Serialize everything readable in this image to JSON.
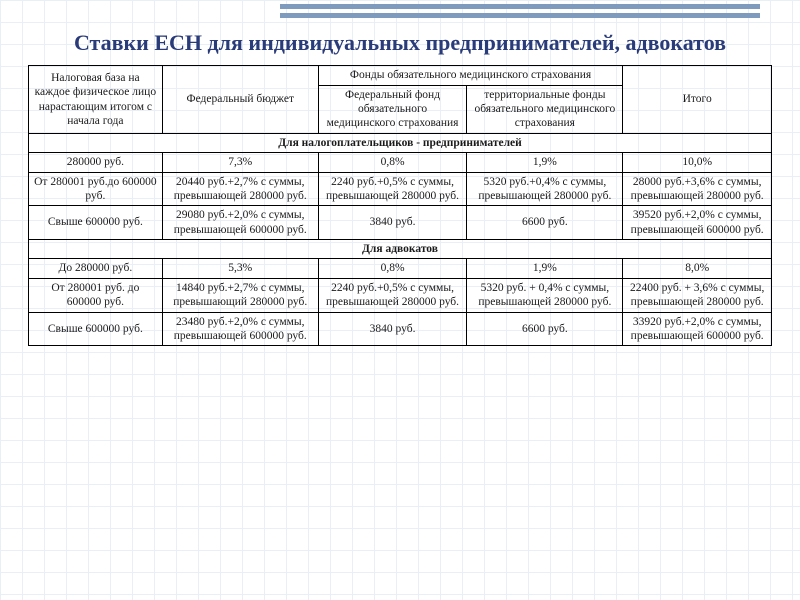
{
  "colors": {
    "title": "#2a3b7a",
    "grid_line": "#d6e4f0",
    "top_stripe": "#7e9bbd",
    "border": "#000000",
    "text": "#1a1a1a"
  },
  "typography": {
    "family": "Times New Roman",
    "title_fontsize": 22,
    "body_fontsize": 11.5
  },
  "title": "Ставки ЕСН для индивидуальных предпринимателей, адвокатов",
  "headers": {
    "base": "Налоговая база на каждое физическое лицо нарастающим итогом с начала года",
    "federal_budget": "Федеральный бюджет",
    "insurance_group": "Фонды обязательного медицинского страхования",
    "federal_fund": "Федеральный фонд обязательного медицинского страхования",
    "territorial_fund": "территориальные фонды обязательного медицинского страхования",
    "total": "Итого"
  },
  "sections": {
    "entrepreneurs": "Для налогоплательщиков - предпринимателей",
    "lawyers": "Для адвокатов"
  },
  "ent": [
    {
      "base": "280000 руб.",
      "fed": "7,3%",
      "f1": "0,8%",
      "f2": "1,9%",
      "total": "10,0%"
    },
    {
      "base": "От 280001 руб.до 600000 руб.",
      "fed": "20440 руб.+2,7% с суммы, превышающей 280000 руб.",
      "f1": "2240 руб.+0,5% с суммы, превышающей 280000 руб.",
      "f2": "5320 руб.+0,4% с суммы, превышающей 280000 руб.",
      "total": "28000 руб.+3,6% с суммы, превышающей 280000 руб."
    },
    {
      "base": "Свыше 600000 руб.",
      "fed": "29080 руб.+2,0% с суммы, превышающей 600000 руб.",
      "f1": "3840 руб.",
      "f2": "6600 руб.",
      "total": "39520 руб.+2,0% с суммы, превышающей 600000 руб."
    }
  ],
  "law": [
    {
      "base": "До 280000 руб.",
      "fed": "5,3%",
      "f1": "0,8%",
      "f2": "1,9%",
      "total": "8,0%"
    },
    {
      "base": "От 280001 руб. до 600000 руб.",
      "fed": "14840 руб.+2,7% с суммы, превышающий 280000 руб.",
      "f1": "2240 руб.+0,5% с суммы, превышающей 280000 руб.",
      "f2": "5320 руб. + 0,4% с суммы, превышающей 280000 руб.",
      "total": "22400 руб. + 3,6% с суммы, превышающей 280000 руб."
    },
    {
      "base": "Свыше 600000 руб.",
      "fed": "23480 руб.+2,0% с суммы, превышающей 600000 руб.",
      "f1": "3840 руб.",
      "f2": "6600 руб.",
      "total": "33920 руб.+2,0% с суммы, превышающей 600000 руб."
    }
  ]
}
